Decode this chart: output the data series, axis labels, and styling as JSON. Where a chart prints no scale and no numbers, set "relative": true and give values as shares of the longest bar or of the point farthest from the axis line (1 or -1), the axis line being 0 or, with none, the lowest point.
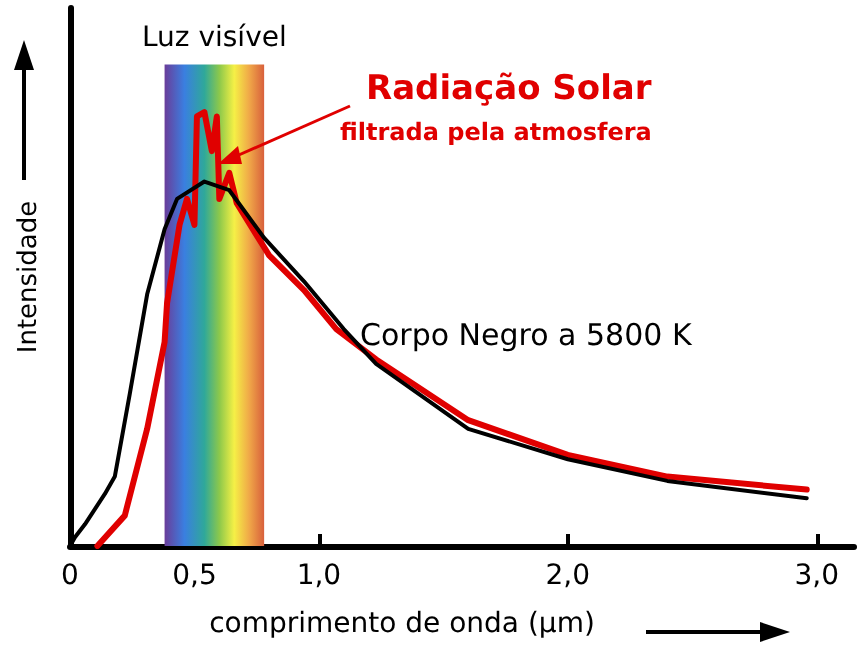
{
  "chart_data": {
    "type": "line",
    "relative": true,
    "xlabel": "comprimento de onda (µm)",
    "ylabel": "Intensidade",
    "xlim": [
      0,
      3.15
    ],
    "xticks": [
      0,
      {
        "value": 0.5,
        "label": "0,5"
      },
      {
        "value": 1.0,
        "label": "1,0"
      },
      {
        "value": 2.0,
        "label": "2,0"
      },
      {
        "value": 3.0,
        "label": "3,0"
      }
    ],
    "series": [
      {
        "name": "Corpo Negro a 5800 K",
        "color": "#000000",
        "x": [
          0,
          0.02,
          0.06,
          0.14,
          0.18,
          0.24,
          0.31,
          0.38,
          0.43,
          0.54,
          0.64,
          0.78,
          0.94,
          1.1,
          1.23,
          1.6,
          2.0,
          2.4,
          2.96
        ],
        "values": [
          0,
          0.02,
          0.05,
          0.12,
          0.16,
          0.35,
          0.58,
          0.73,
          0.8,
          0.84,
          0.82,
          0.71,
          0.61,
          0.5,
          0.42,
          0.27,
          0.2,
          0.15,
          0.11
        ]
      },
      {
        "name": "Radiação Solar",
        "color": "#e00000",
        "x": [
          0.11,
          0.22,
          0.31,
          0.38,
          0.39,
          0.44,
          0.47,
          0.5,
          0.51,
          0.54,
          0.57,
          0.59,
          0.6,
          0.64,
          0.67,
          0.8,
          0.94,
          1.07,
          1.23,
          1.6,
          2.0,
          2.4,
          2.96
        ],
        "values": [
          0,
          0.07,
          0.27,
          0.47,
          0.56,
          0.74,
          0.8,
          0.74,
          0.99,
          1,
          0.91,
          0.99,
          0.8,
          0.86,
          0.79,
          0.67,
          0.59,
          0.5,
          0.43,
          0.29,
          0.21,
          0.16,
          0.13
        ]
      }
    ],
    "annotations": [
      "filtrada pela atmosfera"
    ],
    "bands": [
      {
        "axis": "x",
        "from": 0.38,
        "to": 0.78,
        "label": "Luz visível"
      }
    ],
    "grid": false,
    "legend": false,
    "marker": "none",
    "line_style": "solid"
  }
}
